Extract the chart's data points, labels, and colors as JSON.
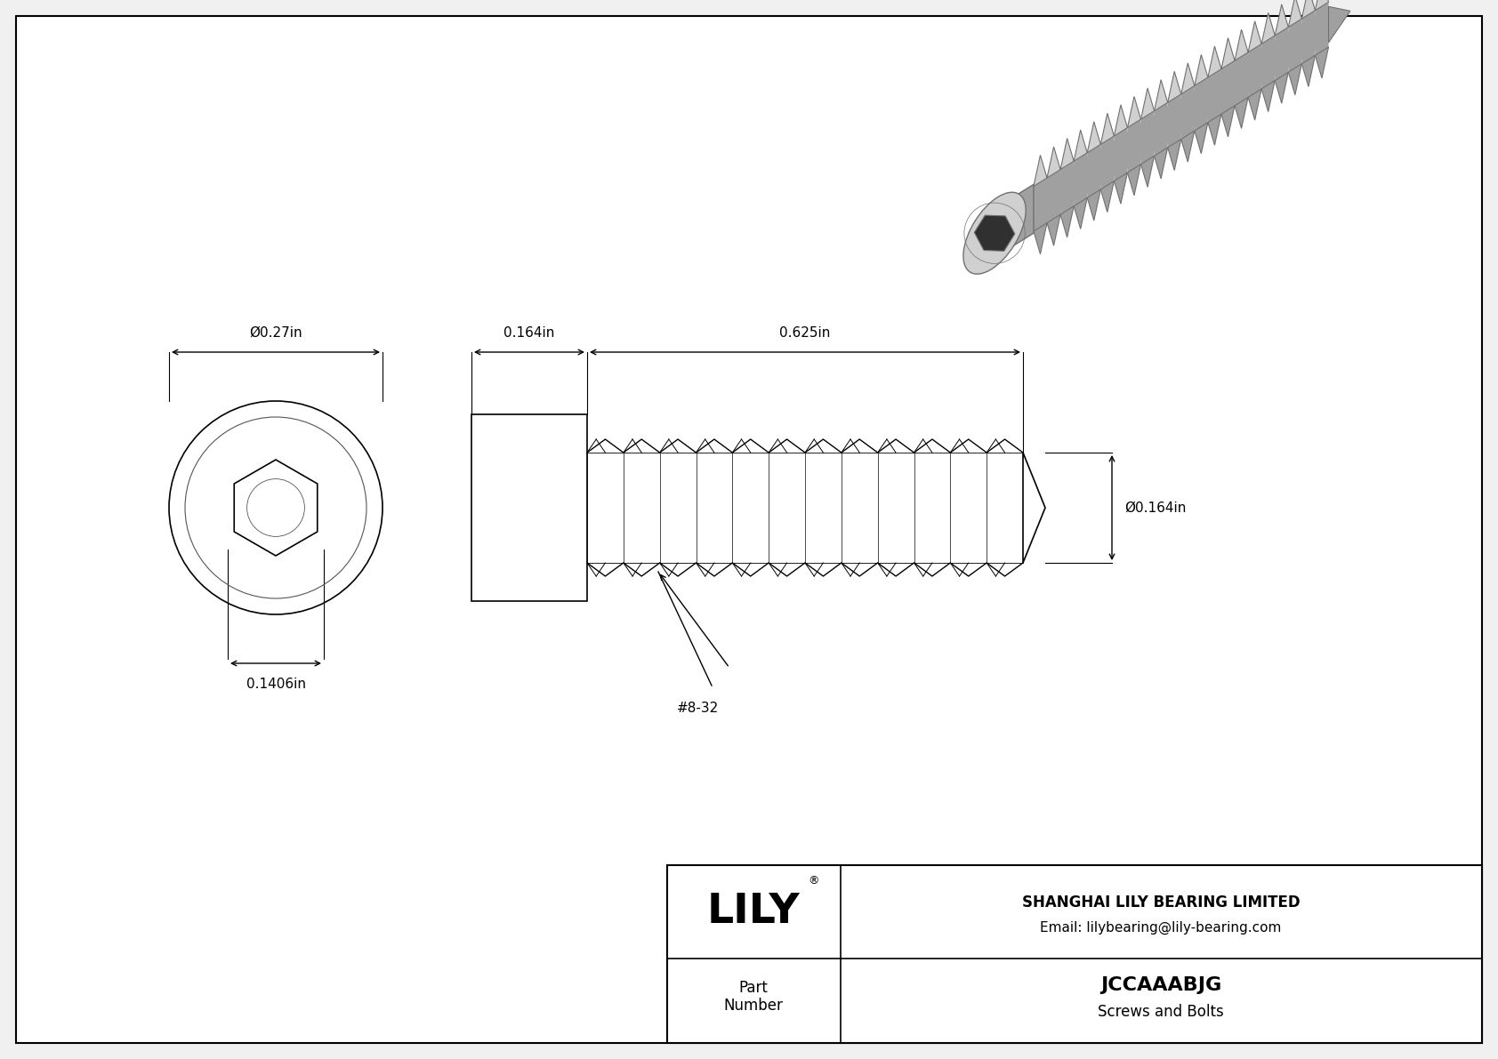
{
  "bg_color": "#f0f0f0",
  "inner_bg_color": "#ffffff",
  "border_color": "#000000",
  "line_color": "#000000",
  "dim_color": "#000000",
  "title": "JCCAAABJG",
  "subtitle": "Screws and Bolts",
  "company": "SHANGHAI LILY BEARING LIMITED",
  "email": "Email: lilybearing@lily-bearing.com",
  "part_label": "Part\nNumber",
  "dim_head_diameter": "Ø0.27in",
  "dim_hex_diameter": "0.1406in",
  "dim_head_length": "0.164in",
  "dim_thread_length": "0.625in",
  "dim_thread_diameter": "Ø0.164in",
  "thread_label": "#8-32",
  "lily_logo": "LILY",
  "logo_reg": "®"
}
